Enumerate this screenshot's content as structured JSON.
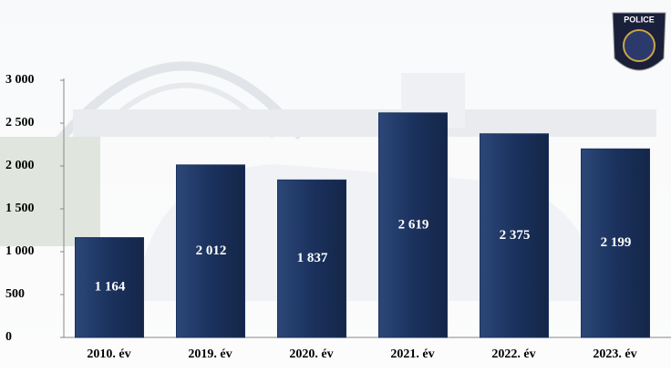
{
  "chart_data": {
    "type": "bar",
    "categories": [
      "2010. év",
      "2019. év",
      "2020. év",
      "2021. év",
      "2022. év",
      "2023. év"
    ],
    "values": [
      1164,
      2012,
      1837,
      2619,
      2375,
      2199
    ],
    "value_labels": [
      "1 164",
      "2 012",
      "1 837",
      "2 619",
      "2 375",
      "2 199"
    ],
    "color": "#1b325e",
    "ylim": [
      0,
      3000
    ],
    "yticks": [
      0,
      500,
      {
        "value": 1000,
        "label": "1 000"
      },
      {
        "value": 1500,
        "label": "1 500"
      },
      {
        "value": 2000,
        "label": "2 000"
      },
      {
        "value": 2500,
        "label": "2 500"
      },
      {
        "value": 3000,
        "label": "3 000"
      }
    ],
    "grid": false,
    "badge": "POLICE"
  }
}
